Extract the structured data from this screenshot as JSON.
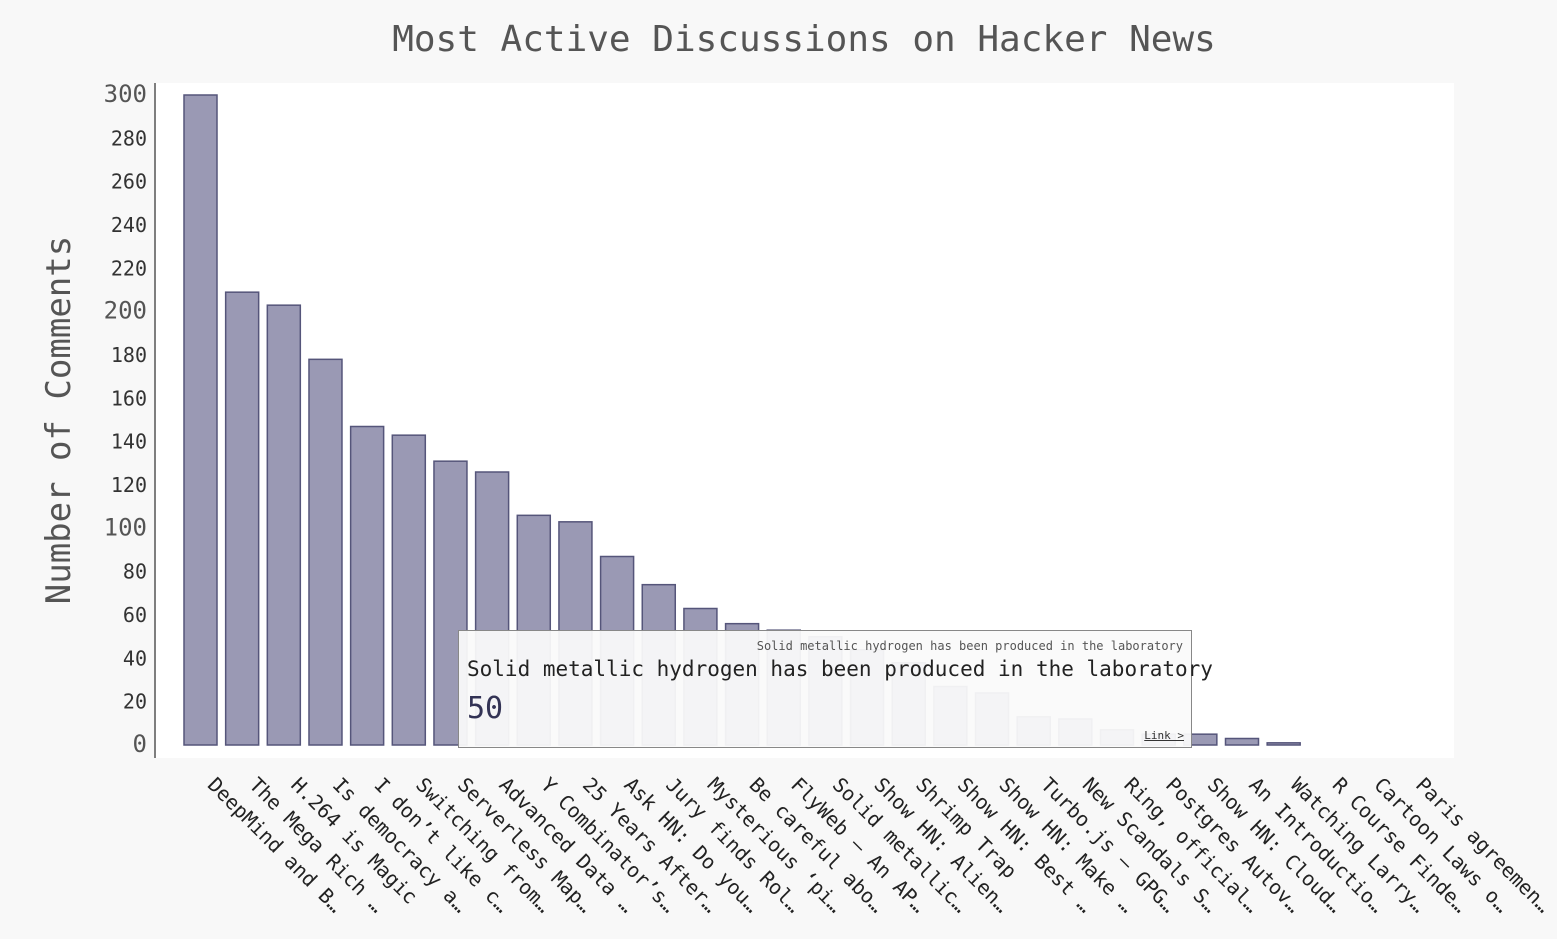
{
  "chart_data": {
    "type": "bar",
    "title": "Most Active Discussions on Hacker News",
    "xlabel": "",
    "ylabel": "Number of Comments",
    "ylim": [
      0,
      300
    ],
    "yticks": [
      0,
      20,
      40,
      60,
      80,
      100,
      120,
      140,
      160,
      180,
      200,
      220,
      240,
      260,
      280,
      300
    ],
    "categories": [
      "DeepMind and B…",
      "The Mega Rich …",
      "H.264 is Magic",
      "Is democracy a…",
      "I don’t like c…",
      "Switching from…",
      "Serverless Map…",
      "Advanced Data …",
      "Y Combinator’s…",
      "25 Years After…",
      "Ask HN: Do you…",
      "Jury finds Rol…",
      "Mysterious ‘pi…",
      "Be careful abo…",
      "FlyWeb – An AP…",
      "Solid metallic…",
      "Show HN: Alien…",
      "Shrimp Trap",
      "Show HN: Best …",
      "Show HN: Make …",
      "Turbo.js – GPG…",
      "New Scandals S…",
      "Ring, official…",
      "Postgres Autov…",
      "Show HN: Cloud…",
      "An Introductio…",
      "Watching Larry…",
      "R Course Finde…",
      "Cartoon Laws o…",
      "Paris agreemen…"
    ],
    "values": [
      300,
      209,
      203,
      178,
      147,
      143,
      131,
      126,
      106,
      103,
      87,
      74,
      63,
      56,
      53,
      50,
      44,
      38,
      27,
      24,
      13,
      12,
      7,
      5,
      5,
      3,
      1,
      0,
      0,
      0
    ],
    "active_index": 15,
    "tooltip": {
      "small_label": "Solid metallic hydrogen has been produced in the laboratory",
      "title": "Solid metallic hydrogen has been produced in the laboratory",
      "value": "50",
      "link": "Link >"
    },
    "colors": {
      "bar": "#9a99b4",
      "bar_stroke": "#55557a",
      "background": "#f8f8f8",
      "plot": "#ffffff"
    },
    "grid": false
  }
}
